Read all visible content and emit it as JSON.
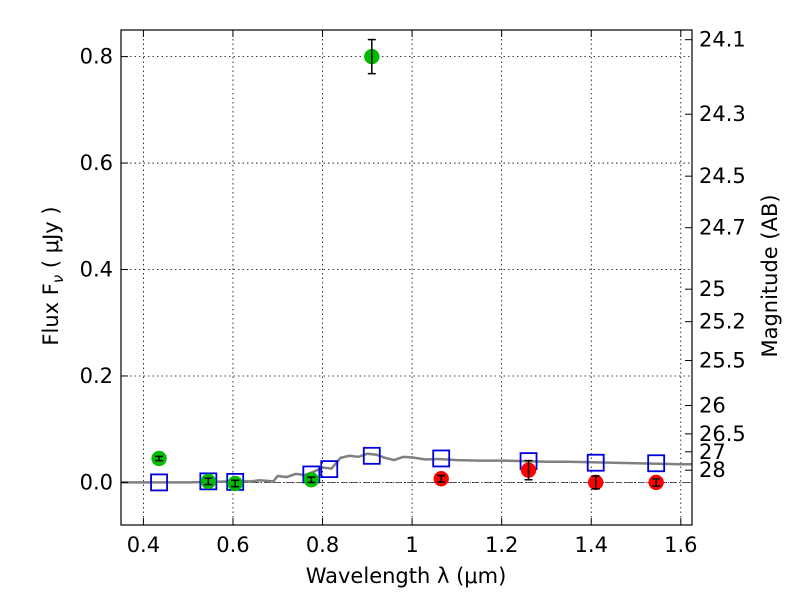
{
  "chart_data": {
    "type": "scatter",
    "xlabel": "Wavelength  λ (μm)",
    "ylabel": "Flux  F",
    "ylabel_sub": "ν",
    "ylabel_unit": " ( μJy )",
    "y2label": "Magnitude (AB)",
    "xlim": [
      0.35,
      1.625
    ],
    "ylim": [
      -0.08,
      0.85
    ],
    "grid": true,
    "x_ticks": [
      0.4,
      0.6,
      0.8,
      1.0,
      1.2,
      1.4,
      1.6
    ],
    "x_tick_labels": [
      "0.4",
      "0.6",
      "0.8",
      "1",
      "1.2",
      "1.4",
      "1.6"
    ],
    "y_ticks": [
      0.0,
      0.2,
      0.4,
      0.6,
      0.8
    ],
    "y_tick_labels": [
      "0.0",
      "0.2",
      "0.4",
      "0.6",
      "0.8"
    ],
    "mag_ticks": [
      {
        "label": "24.1",
        "flux": 0.8318
      },
      {
        "label": "24.3",
        "flux": 0.6918
      },
      {
        "label": "24.5",
        "flux": 0.5754
      },
      {
        "label": "24.7",
        "flux": 0.4786
      },
      {
        "label": "25",
        "flux": 0.3631
      },
      {
        "label": "25.2",
        "flux": 0.302
      },
      {
        "label": "25.5",
        "flux": 0.2291
      },
      {
        "label": "26",
        "flux": 0.1445
      },
      {
        "label": "26.5",
        "flux": 0.0912
      },
      {
        "label": "27",
        "flux": 0.0575
      },
      {
        "label": "28",
        "flux": 0.0229
      }
    ],
    "series": [
      {
        "type": "line",
        "color": "#808080",
        "points": [
          [
            0.35,
            0.0
          ],
          [
            0.5,
            0.0
          ],
          [
            0.55,
            0.001
          ],
          [
            0.6,
            0.002
          ],
          [
            0.64,
            0.002
          ],
          [
            0.66,
            0.004
          ],
          [
            0.69,
            0.002
          ],
          [
            0.7,
            0.012
          ],
          [
            0.72,
            0.01
          ],
          [
            0.74,
            0.016
          ],
          [
            0.76,
            0.014
          ],
          [
            0.78,
            0.02
          ],
          [
            0.8,
            0.028
          ],
          [
            0.82,
            0.026
          ],
          [
            0.84,
            0.046
          ],
          [
            0.86,
            0.05
          ],
          [
            0.88,
            0.048
          ],
          [
            0.9,
            0.054
          ],
          [
            0.92,
            0.052
          ],
          [
            0.94,
            0.046
          ],
          [
            0.96,
            0.042
          ],
          [
            0.98,
            0.048
          ],
          [
            1.0,
            0.047
          ],
          [
            1.03,
            0.043
          ],
          [
            1.06,
            0.044
          ],
          [
            1.1,
            0.042
          ],
          [
            1.15,
            0.041
          ],
          [
            1.2,
            0.041
          ],
          [
            1.25,
            0.04
          ],
          [
            1.3,
            0.039
          ],
          [
            1.35,
            0.039
          ],
          [
            1.4,
            0.038
          ],
          [
            1.45,
            0.037
          ],
          [
            1.5,
            0.036
          ],
          [
            1.55,
            0.035
          ],
          [
            1.6,
            0.034
          ],
          [
            1.625,
            0.034
          ]
        ]
      },
      {
        "type": "squares",
        "color": "#0000dd",
        "points": [
          [
            0.435,
            0.0
          ],
          [
            0.545,
            0.002
          ],
          [
            0.605,
            0.001
          ],
          [
            0.775,
            0.015
          ],
          [
            0.815,
            0.025
          ],
          [
            0.91,
            0.05
          ],
          [
            1.065,
            0.045
          ],
          [
            1.26,
            0.04
          ],
          [
            1.41,
            0.037
          ],
          [
            1.545,
            0.036
          ]
        ]
      },
      {
        "type": "circles",
        "color": "#00bb00",
        "points": [
          {
            "x": 0.435,
            "y": 0.045,
            "err": 0.004
          },
          {
            "x": 0.545,
            "y": 0.002,
            "err": 0.006
          },
          {
            "x": 0.605,
            "y": -0.002,
            "err": 0.006
          },
          {
            "x": 0.775,
            "y": 0.005,
            "err": 0.005
          },
          {
            "x": 0.91,
            "y": 0.8,
            "err": 0.032
          }
        ]
      },
      {
        "type": "circles",
        "color": "#ff0000",
        "points": [
          {
            "x": 1.065,
            "y": 0.007,
            "err": 0.006
          },
          {
            "x": 1.26,
            "y": 0.023,
            "err": 0.018
          },
          {
            "x": 1.41,
            "y": 0.0,
            "err": 0.012
          },
          {
            "x": 1.545,
            "y": 0.0,
            "err": 0.007
          }
        ]
      }
    ]
  }
}
